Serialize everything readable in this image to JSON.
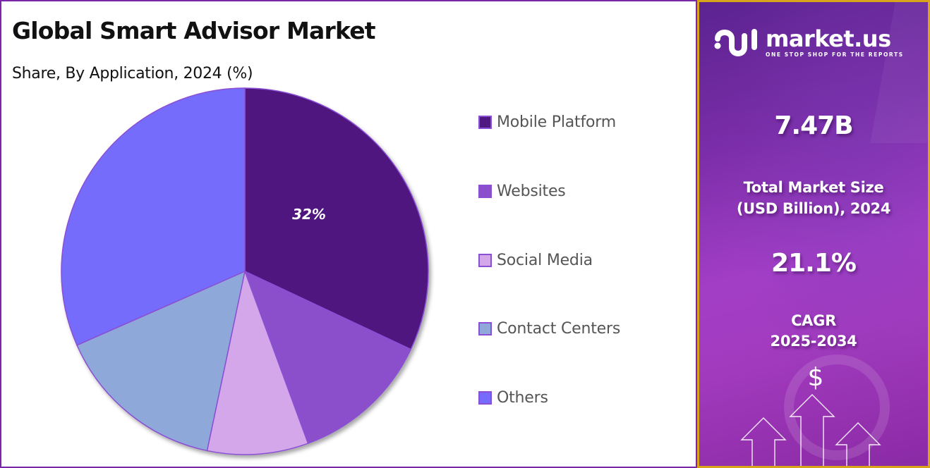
{
  "header": {
    "title": "Global Smart Advisor Market",
    "subtitle": "Share, By Application, 2024 (%)"
  },
  "chart_data": {
    "type": "pie",
    "title": "Global Smart Advisor Market",
    "subtitle": "Share, By Application, 2024 (%)",
    "categories": [
      "Mobile Platform",
      "Websites",
      "Social Media",
      "Contact Centers",
      "Others"
    ],
    "values": [
      32,
      12.4,
      8.9,
      15.1,
      31.6
    ],
    "colors": [
      "#4f1780",
      "#8b4fcc",
      "#d3a7ea",
      "#8ea9d9",
      "#766cfb"
    ],
    "data_labels": [
      "32%",
      "",
      "",
      "",
      ""
    ],
    "start_angle_deg": 0,
    "direction": "clockwise",
    "legend_position": "right",
    "slice_border_color": "#8a4fd4"
  },
  "legend": {
    "items": [
      {
        "label": "Mobile Platform",
        "color": "#4f1780"
      },
      {
        "label": "Websites",
        "color": "#8b4fcc"
      },
      {
        "label": "Social Media",
        "color": "#d3a7ea"
      },
      {
        "label": "Contact Centers",
        "color": "#8ea9d9"
      },
      {
        "label": "Others",
        "color": "#766cfb"
      }
    ]
  },
  "sidebar": {
    "brand": {
      "name": "market.us",
      "tagline": "ONE STOP SHOP FOR THE REPORTS",
      "icon": "market-us-logo-icon"
    },
    "market_size": {
      "value": "7.47B",
      "label_line1": "Total Market Size",
      "label_line2": "(USD Billion), 2024"
    },
    "cagr": {
      "value": "21.1%",
      "label_line1": "CAGR",
      "label_line2": "2025-2034"
    },
    "decor": {
      "dollar_symbol": "$",
      "icon": "growth-arrows-icon"
    },
    "colors": {
      "border": "#d7a41c",
      "background_top": "#5b2390",
      "background_mid": "#a23ec6"
    }
  },
  "colors": {
    "left_border": "#7b26a6"
  }
}
